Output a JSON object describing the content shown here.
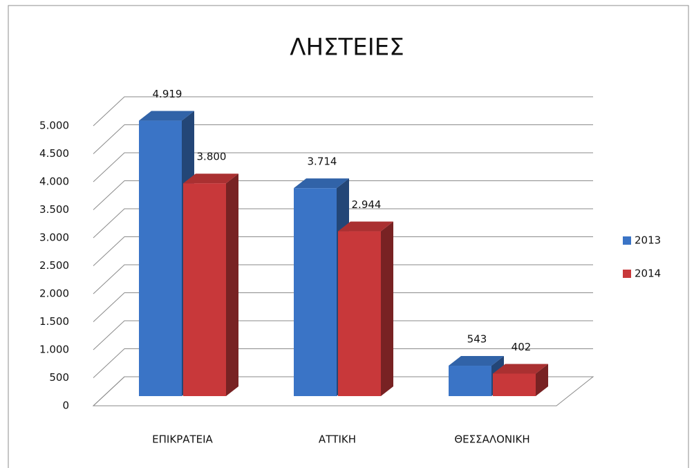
{
  "chart_data": {
    "type": "bar3d",
    "title": "ΛΗΣΤΕΙΕΣ",
    "categories": [
      "ΕΠΙΚΡΑΤΕΙΑ",
      "ΑΤΤΙΚΗ",
      "ΘΕΣΣΑΛΟΝΙΚΗ"
    ],
    "series": [
      {
        "name": "2013",
        "color": "#3a74c6",
        "values": [
          4919,
          3714,
          543
        ],
        "value_labels": [
          "4.919",
          "3.714",
          "543"
        ]
      },
      {
        "name": "2014",
        "color": "#c8383a",
        "values": [
          3800,
          2944,
          402
        ],
        "value_labels": [
          "3.800",
          "2.944",
          "402"
        ]
      }
    ],
    "ylim": [
      0,
      5000
    ],
    "yticks": [
      0,
      500,
      {
        "value": 1000,
        "label": "1.000"
      },
      {
        "value": 1500,
        "label": "1.500"
      },
      {
        "value": 2000,
        "label": "2.000"
      },
      {
        "value": 2500,
        "label": "2.500"
      },
      {
        "value": 3000,
        "label": "3.000"
      },
      {
        "value": 3500,
        "label": "3.500"
      },
      {
        "value": 4000,
        "label": "4.000"
      },
      {
        "value": 4500,
        "label": "4.500"
      },
      {
        "value": 5000,
        "label": "5.000"
      }
    ],
    "grid": true,
    "legend": "right"
  }
}
